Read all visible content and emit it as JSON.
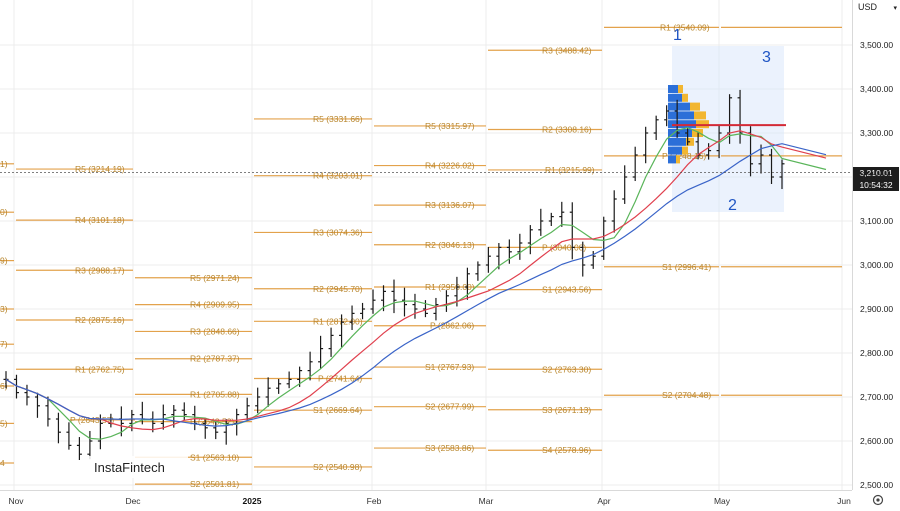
{
  "axis": {
    "currency": "USD",
    "y_ticks": [
      "3,500.00",
      "3,400.00",
      "3,300.00",
      "3,200.00",
      "3,100.00",
      "3,000.00",
      "2,900.00",
      "2,800.00",
      "2,700.00",
      "2,600.00",
      "2,500.00"
    ],
    "x_ticks": [
      "Nov",
      "Dec",
      "2025",
      "Feb",
      "Mar",
      "Apr",
      "May",
      "Jun"
    ],
    "current_price": "3,210.01",
    "countdown": "10:54:32"
  },
  "logo": {
    "text": "InstaFintech"
  },
  "wave_labels": [
    "1",
    "2",
    "3"
  ],
  "colors": {
    "pivot": "#e3a24c",
    "ma_red": "#e0404e",
    "ma_green": "#5ab55a",
    "ma_blue": "#3a64c8",
    "bars": "#1a1a1a",
    "wave": "#1f55c4"
  },
  "chart_data": {
    "type": "ohlc",
    "ylim": [
      2490,
      3560
    ],
    "overlays": [
      "moving averages (green, red, blue)",
      "monthly pivot levels",
      "volume profile"
    ],
    "pivot_labels": [
      "1)",
      "R5 (3214.19)",
      "0)",
      "R4 (3101.18)",
      "9)",
      "R3 (2988.17)",
      "3)",
      "R2 (2875.16)",
      "7)",
      "R1 (2762.75)",
      "6)",
      "5)",
      "4",
      "R5 (2971.24)",
      "R4 (2909.95)",
      "R3 (2848.66)",
      "R2 (2787.37)",
      "R1 (2705.88)",
      "P (2643.52)",
      "S1 (2563.10)",
      "S2 (2501.81)",
      "P (2643.57)",
      "R5 (3331.66)",
      "R4 (3203.01)",
      "R3 (3074.36)",
      "R2 (2945.70)",
      "R1 (2872.00)",
      "P (2741.64)",
      "S1 (2669.64)",
      "S2 (2540.98)",
      "R5 (3315.97)",
      "R4 (3226.02)",
      "R3 (3136.07)",
      "R2 (3046.13)",
      "R1 (2950.00)",
      "P (2862.06)",
      "S1 (2767.93)",
      "S2 (2677.99)",
      "S3 (2583.86)",
      "R3 (3488.42)",
      "R2 (3308.16)",
      "R1 (3215.99)",
      "P (3040.00)",
      "S1 (2943.56)",
      "S2 (2763.30)",
      "S3 (2671.13)",
      "S4 (2578.96)",
      "R1 (3540.09)",
      "P (3248.16)",
      "S1 (2996.41)",
      "S2 (2704.48)"
    ],
    "approx_closes": [
      2740,
      2710,
      2700,
      2680,
      2650,
      2620,
      2590,
      2570,
      2600,
      2640,
      2650,
      2640,
      2660,
      2650,
      2640,
      2660,
      2670,
      2660,
      2640,
      2630,
      2620,
      2640,
      2660,
      2680,
      2700,
      2720,
      2730,
      2740,
      2760,
      2780,
      2810,
      2840,
      2870,
      2890,
      2900,
      2920,
      2940,
      2920,
      2910,
      2900,
      2890,
      2910,
      2930,
      2950,
      2980,
      3000,
      3020,
      3040,
      3030,
      3050,
      3080,
      3100,
      3110,
      3120,
      3040,
      3000,
      3020,
      3100,
      3150,
      3200,
      3250,
      3300,
      3330,
      3350,
      3300,
      3280,
      3250,
      3260,
      3300,
      3380,
      3300,
      3230,
      3250,
      3200,
      3230
    ]
  }
}
